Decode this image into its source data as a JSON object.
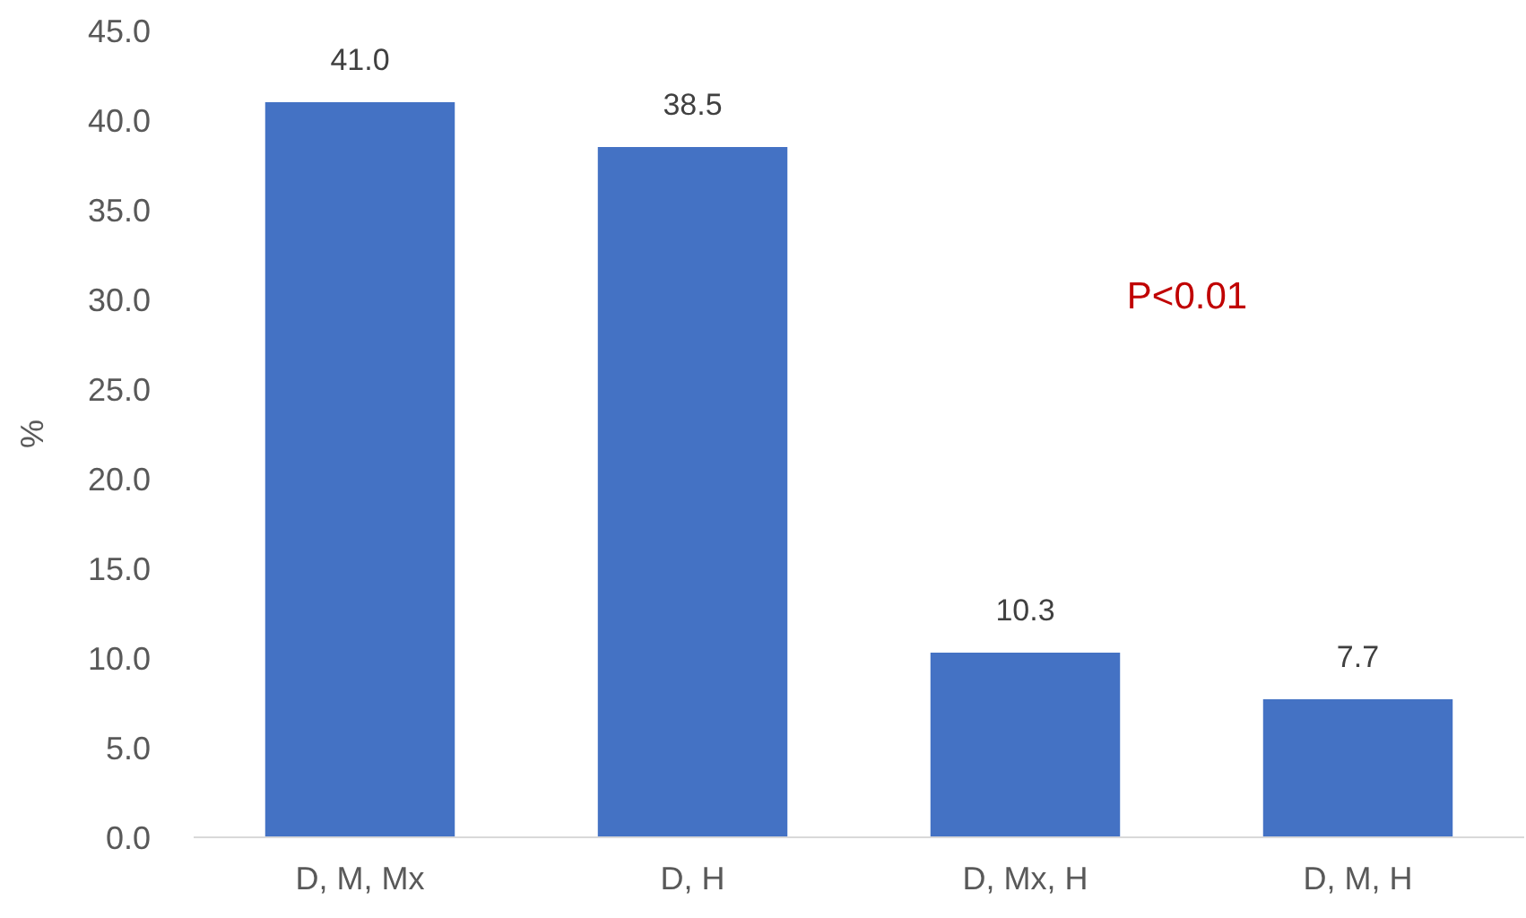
{
  "chart_data": {
    "type": "bar",
    "categories": [
      "D, M, Mx",
      "D, H",
      "D, Mx, H",
      "D, M, H"
    ],
    "values": [
      41.0,
      38.5,
      10.3,
      7.7
    ],
    "value_labels": [
      "41.0",
      "38.5",
      "10.3",
      "7.7"
    ],
    "color": "#4472c4",
    "ylabel": "%",
    "ylim": [
      0,
      45
    ],
    "yticks": [
      {
        "value": 0,
        "label": "0.0"
      },
      {
        "value": 5,
        "label": "5.0"
      },
      {
        "value": 10,
        "label": "10.0"
      },
      {
        "value": 15,
        "label": "15.0"
      },
      {
        "value": 20,
        "label": "20.0"
      },
      {
        "value": 25,
        "label": "25.0"
      },
      {
        "value": 30,
        "label": "30.0"
      },
      {
        "value": 35,
        "label": "35.0"
      },
      {
        "value": 40,
        "label": "40.0"
      },
      {
        "value": 45,
        "label": "45.0"
      }
    ],
    "annotations": [
      "P<0.01"
    ]
  }
}
